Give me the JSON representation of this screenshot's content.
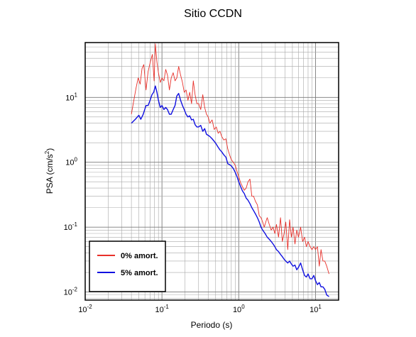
{
  "chart_data": {
    "type": "line",
    "title": "Sitio CCDN",
    "xlabel": "Periodo (s)",
    "ylabel_parts": {
      "base": "PSA (cm/s",
      "sup": "2",
      "close": ")"
    },
    "xscale": "log",
    "yscale": "log",
    "xlim": [
      0.01,
      20
    ],
    "ylim": [
      0.0075,
      70
    ],
    "grid": true,
    "legend_position": "bottom-left",
    "x_ticks": [
      {
        "value": 0.01,
        "base": "10",
        "exp": "-2"
      },
      {
        "value": 0.1,
        "base": "10",
        "exp": "-1"
      },
      {
        "value": 1,
        "base": "10",
        "exp": "0"
      },
      {
        "value": 10,
        "base": "10",
        "exp": "1"
      }
    ],
    "y_ticks": [
      {
        "value": 0.01,
        "base": "10",
        "exp": "-2"
      },
      {
        "value": 0.1,
        "base": "10",
        "exp": "-1"
      },
      {
        "value": 1,
        "base": "10",
        "exp": "0"
      },
      {
        "value": 10,
        "base": "10",
        "exp": "1"
      }
    ],
    "series": [
      {
        "name": "0% amort.",
        "color": "#e8302a",
        "points": [
          [
            0.04,
            5.5
          ],
          [
            0.043,
            9
          ],
          [
            0.046,
            14
          ],
          [
            0.049,
            20
          ],
          [
            0.052,
            16
          ],
          [
            0.055,
            28
          ],
          [
            0.058,
            32
          ],
          [
            0.062,
            13
          ],
          [
            0.066,
            25
          ],
          [
            0.07,
            34
          ],
          [
            0.075,
            46
          ],
          [
            0.079,
            18
          ],
          [
            0.082,
            67
          ],
          [
            0.086,
            35
          ],
          [
            0.09,
            24
          ],
          [
            0.095,
            17
          ],
          [
            0.1,
            20
          ],
          [
            0.106,
            18
          ],
          [
            0.112,
            27
          ],
          [
            0.118,
            22
          ],
          [
            0.125,
            13
          ],
          [
            0.132,
            20
          ],
          [
            0.14,
            24
          ],
          [
            0.148,
            18
          ],
          [
            0.156,
            20
          ],
          [
            0.165,
            30
          ],
          [
            0.175,
            22
          ],
          [
            0.185,
            17
          ],
          [
            0.195,
            12
          ],
          [
            0.206,
            13
          ],
          [
            0.218,
            9
          ],
          [
            0.23,
            12
          ],
          [
            0.243,
            8
          ],
          [
            0.256,
            18
          ],
          [
            0.27,
            11
          ],
          [
            0.285,
            8
          ],
          [
            0.3,
            8
          ],
          [
            0.32,
            6.5
          ],
          [
            0.34,
            11
          ],
          [
            0.36,
            7
          ],
          [
            0.38,
            5.5
          ],
          [
            0.4,
            5
          ],
          [
            0.42,
            4
          ],
          [
            0.45,
            4.5
          ],
          [
            0.48,
            3.2
          ],
          [
            0.51,
            3.5
          ],
          [
            0.54,
            2.8
          ],
          [
            0.57,
            3
          ],
          [
            0.6,
            2.5
          ],
          [
            0.64,
            2.2
          ],
          [
            0.68,
            2.3
          ],
          [
            0.72,
            1.6
          ],
          [
            0.76,
            1.3
          ],
          [
            0.8,
            1.1
          ],
          [
            0.85,
            1
          ],
          [
            0.9,
            0.9
          ],
          [
            0.95,
            0.72
          ],
          [
            1.0,
            0.6
          ],
          [
            1.06,
            0.48
          ],
          [
            1.12,
            0.42
          ],
          [
            1.18,
            0.37
          ],
          [
            1.25,
            0.4
          ],
          [
            1.32,
            0.5
          ],
          [
            1.4,
            0.55
          ],
          [
            1.48,
            0.3
          ],
          [
            1.56,
            0.3
          ],
          [
            1.65,
            0.25
          ],
          [
            1.75,
            0.22
          ],
          [
            1.85,
            0.15
          ],
          [
            1.95,
            0.14
          ],
          [
            2.05,
            0.12
          ],
          [
            2.15,
            0.1
          ],
          [
            2.25,
            0.12
          ],
          [
            2.35,
            0.14
          ],
          [
            2.5,
            0.11
          ],
          [
            2.65,
            0.09
          ],
          [
            2.8,
            0.1
          ],
          [
            2.95,
            0.08
          ],
          [
            3.1,
            0.11
          ],
          [
            3.3,
            0.07
          ],
          [
            3.5,
            0.14
          ],
          [
            3.7,
            0.06
          ],
          [
            3.9,
            0.08
          ],
          [
            4.1,
            0.12
          ],
          [
            4.35,
            0.045
          ],
          [
            4.6,
            0.13
          ],
          [
            4.85,
            0.07
          ],
          [
            5.1,
            0.1
          ],
          [
            5.4,
            0.055
          ],
          [
            5.7,
            0.09
          ],
          [
            6.0,
            0.07
          ],
          [
            6.4,
            0.1
          ],
          [
            6.8,
            0.06
          ],
          [
            7.2,
            0.07
          ],
          [
            7.6,
            0.05
          ],
          [
            8.0,
            0.06
          ],
          [
            8.5,
            0.05
          ],
          [
            9.0,
            0.045
          ],
          [
            9.5,
            0.05
          ],
          [
            10.0,
            0.045
          ],
          [
            10.6,
            0.05
          ],
          [
            11.2,
            0.025
          ],
          [
            11.8,
            0.045
          ],
          [
            12.5,
            0.03
          ],
          [
            13.2,
            0.03
          ],
          [
            14.0,
            0.025
          ],
          [
            15.0,
            0.019
          ]
        ]
      },
      {
        "name": "5% amort.",
        "color": "#1010e0",
        "points": [
          [
            0.04,
            4
          ],
          [
            0.045,
            4.6
          ],
          [
            0.05,
            5.3
          ],
          [
            0.053,
            4.6
          ],
          [
            0.057,
            5.5
          ],
          [
            0.062,
            7.5
          ],
          [
            0.066,
            7.5
          ],
          [
            0.07,
            9
          ],
          [
            0.074,
            11
          ],
          [
            0.078,
            12
          ],
          [
            0.082,
            15
          ],
          [
            0.086,
            12
          ],
          [
            0.09,
            9
          ],
          [
            0.095,
            7
          ],
          [
            0.1,
            7.5
          ],
          [
            0.106,
            6.5
          ],
          [
            0.112,
            7
          ],
          [
            0.118,
            6.5
          ],
          [
            0.125,
            5.5
          ],
          [
            0.132,
            5.5
          ],
          [
            0.14,
            6.5
          ],
          [
            0.148,
            7.5
          ],
          [
            0.156,
            10.5
          ],
          [
            0.165,
            11.5
          ],
          [
            0.175,
            9
          ],
          [
            0.185,
            7.5
          ],
          [
            0.195,
            6.5
          ],
          [
            0.206,
            5.5
          ],
          [
            0.218,
            5
          ],
          [
            0.23,
            5.2
          ],
          [
            0.243,
            4.5
          ],
          [
            0.256,
            4.6
          ],
          [
            0.27,
            3.8
          ],
          [
            0.285,
            3.5
          ],
          [
            0.3,
            3.5
          ],
          [
            0.32,
            3.7
          ],
          [
            0.34,
            3
          ],
          [
            0.36,
            3.3
          ],
          [
            0.38,
            2.7
          ],
          [
            0.4,
            2.6
          ],
          [
            0.42,
            2.5
          ],
          [
            0.45,
            2.3
          ],
          [
            0.48,
            2.1
          ],
          [
            0.51,
            1.9
          ],
          [
            0.54,
            1.7
          ],
          [
            0.57,
            1.55
          ],
          [
            0.6,
            1.45
          ],
          [
            0.64,
            1.3
          ],
          [
            0.68,
            1.2
          ],
          [
            0.72,
            0.95
          ],
          [
            0.76,
            0.92
          ],
          [
            0.8,
            0.88
          ],
          [
            0.85,
            0.8
          ],
          [
            0.9,
            0.7
          ],
          [
            0.95,
            0.6
          ],
          [
            1.0,
            0.5
          ],
          [
            1.06,
            0.42
          ],
          [
            1.12,
            0.36
          ],
          [
            1.18,
            0.33
          ],
          [
            1.25,
            0.28
          ],
          [
            1.32,
            0.26
          ],
          [
            1.4,
            0.23
          ],
          [
            1.48,
            0.2
          ],
          [
            1.56,
            0.18
          ],
          [
            1.65,
            0.16
          ],
          [
            1.75,
            0.14
          ],
          [
            1.85,
            0.12
          ],
          [
            1.95,
            0.1
          ],
          [
            2.05,
            0.09
          ],
          [
            2.2,
            0.08
          ],
          [
            2.35,
            0.07
          ],
          [
            2.5,
            0.065
          ],
          [
            2.65,
            0.06
          ],
          [
            2.8,
            0.055
          ],
          [
            2.95,
            0.05
          ],
          [
            3.1,
            0.045
          ],
          [
            3.3,
            0.042
          ],
          [
            3.5,
            0.038
          ],
          [
            3.7,
            0.035
          ],
          [
            3.9,
            0.032
          ],
          [
            4.1,
            0.03
          ],
          [
            4.35,
            0.028
          ],
          [
            4.6,
            0.03
          ],
          [
            4.85,
            0.027
          ],
          [
            5.1,
            0.025
          ],
          [
            5.4,
            0.026
          ],
          [
            5.7,
            0.022
          ],
          [
            6.0,
            0.024
          ],
          [
            6.4,
            0.028
          ],
          [
            6.8,
            0.022
          ],
          [
            7.2,
            0.018
          ],
          [
            7.6,
            0.017
          ],
          [
            8.0,
            0.019
          ],
          [
            8.5,
            0.016
          ],
          [
            9.0,
            0.016
          ],
          [
            9.5,
            0.018
          ],
          [
            10.0,
            0.015
          ],
          [
            10.6,
            0.013
          ],
          [
            11.2,
            0.014
          ],
          [
            11.8,
            0.012
          ],
          [
            12.5,
            0.012
          ],
          [
            13.2,
            0.011
          ],
          [
            14.0,
            0.009
          ],
          [
            15.0,
            0.0085
          ]
        ]
      }
    ]
  }
}
